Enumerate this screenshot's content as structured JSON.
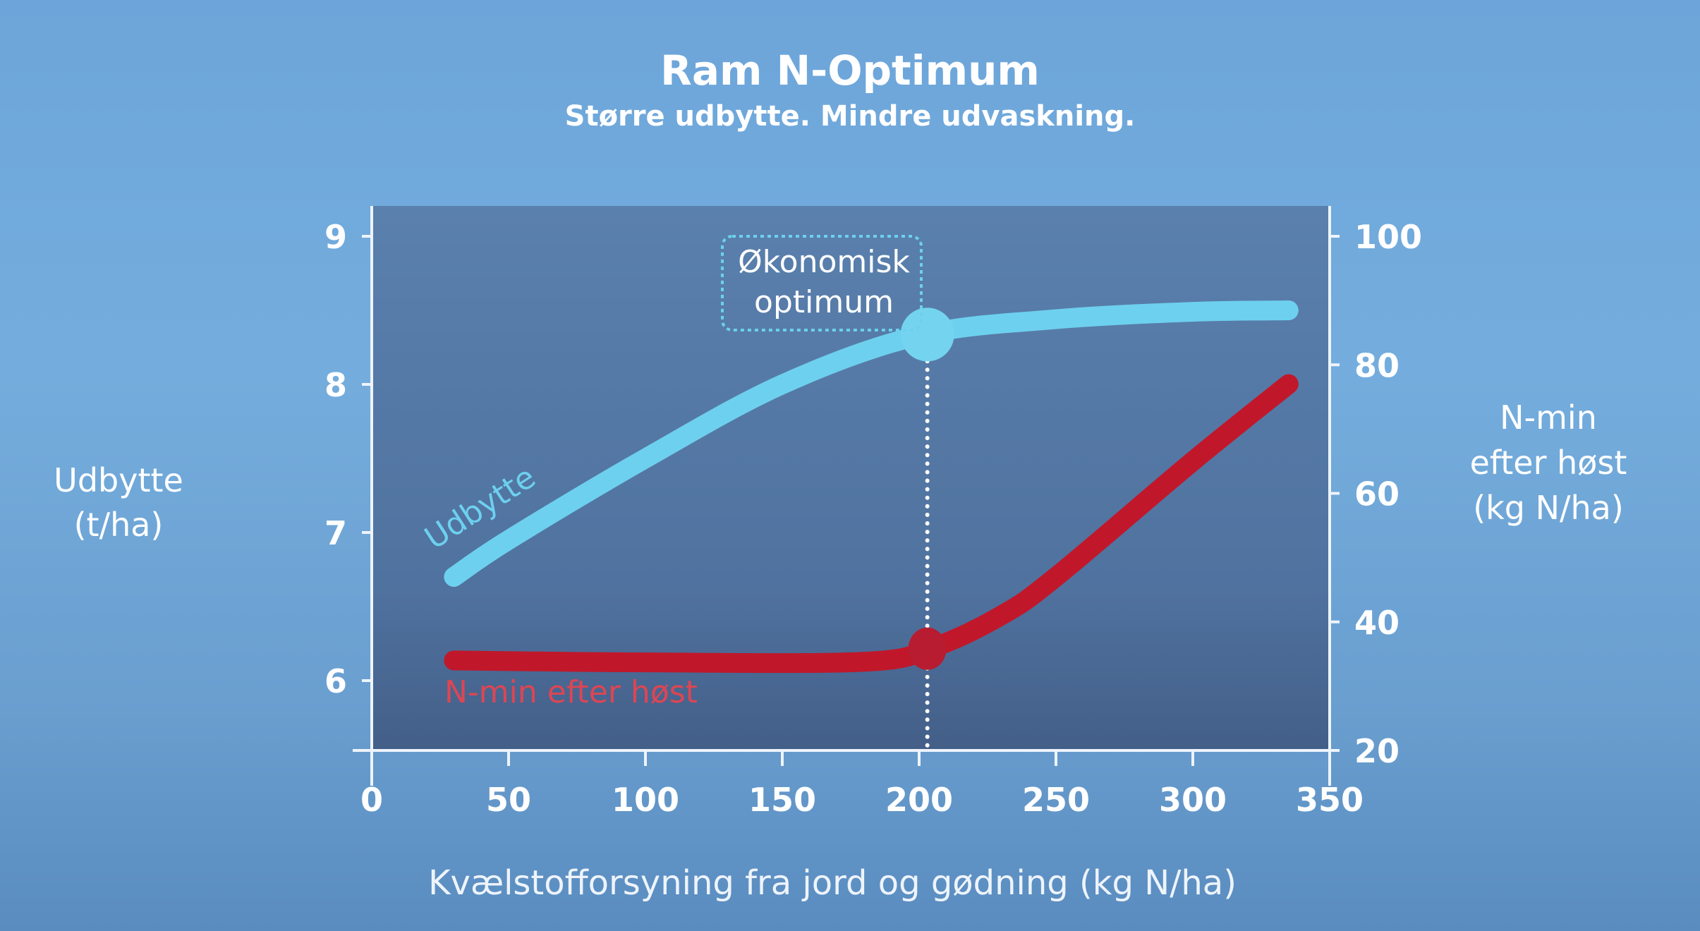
{
  "chart_data": {
    "type": "line",
    "title": "Ram N-Optimum",
    "subtitle": "Større udbytte. Mindre udvaskning.",
    "xlabel": "Kvælstofforsyning fra jord og gødning (kg N/ha)",
    "ylabel_left": [
      "Udbytte",
      "(t/ha)"
    ],
    "ylabel_right": [
      "N-min",
      "efter høst",
      "(kg N/ha)"
    ],
    "xlim": [
      0,
      350
    ],
    "ylim_left": [
      5.53,
      9
    ],
    "ylim_right": [
      20,
      100
    ],
    "x_ticks": [
      "0",
      "50",
      "100",
      "150",
      "200",
      "250",
      "300",
      "350"
    ],
    "y_left_ticks": [
      "6",
      "7",
      "8",
      "9"
    ],
    "y_right_ticks": [
      "20",
      "40",
      "60",
      "80",
      "100"
    ],
    "grid": false,
    "series": [
      {
        "name": "Udbytte",
        "axis": "left",
        "color": "#6dd0ee",
        "x": [
          30,
          50,
          100,
          150,
          200,
          250,
          300,
          335
        ],
        "y": [
          6.7,
          6.95,
          7.5,
          8.0,
          8.33,
          8.44,
          8.49,
          8.5
        ]
      },
      {
        "name": "N-min efter høst",
        "axis": "right",
        "color": "#c0182a",
        "label_color": "#dc4653",
        "x": [
          30,
          100,
          180,
          205,
          230,
          250,
          300,
          335
        ],
        "y": [
          34,
          33.7,
          33.8,
          36,
          41,
          47,
          65,
          77
        ]
      }
    ],
    "annotation": {
      "lines": [
        "Økonomisk",
        "optimum"
      ],
      "x": 203,
      "color": "#6dd0ee"
    },
    "colors": {
      "plot_bg_top": "#5a80ad",
      "plot_bg_bottom": "#435f88"
    }
  }
}
